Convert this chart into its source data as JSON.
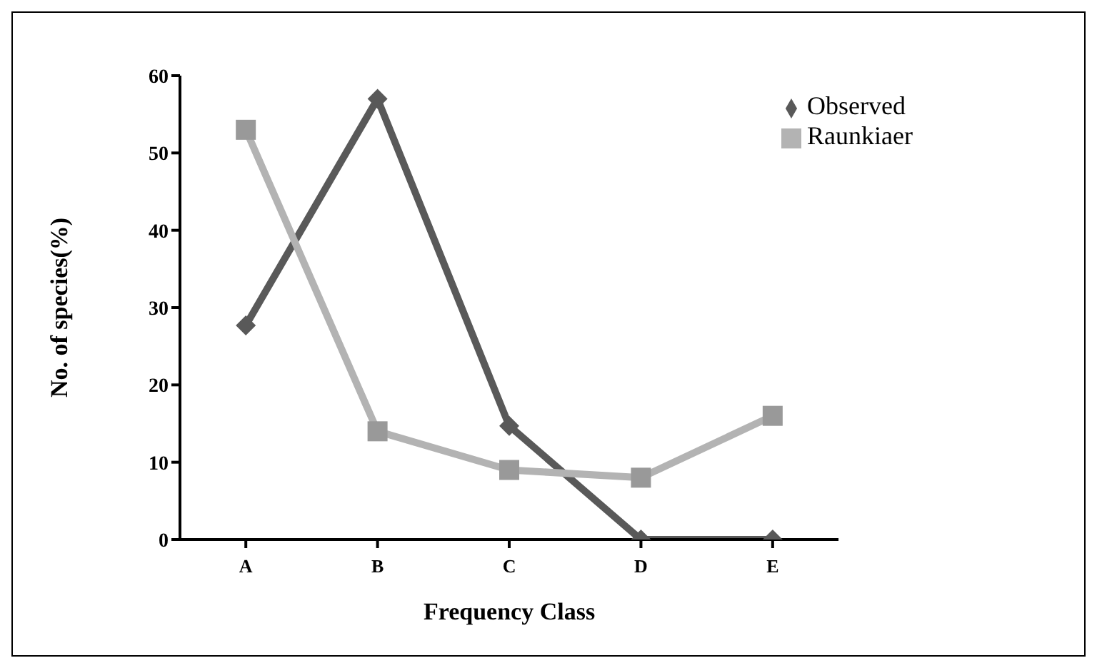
{
  "chart_data": {
    "type": "line",
    "xlabel": "Frequency Class",
    "ylabel": "No. of species(%)",
    "categories": [
      "A",
      "B",
      "C",
      "D",
      "E"
    ],
    "series": [
      {
        "name": "Observed",
        "color": "#595959",
        "values": [
          27.7,
          57,
          14.7,
          0,
          0
        ],
        "marker": "diamond"
      },
      {
        "name": "Raunkiaer",
        "color": "#b3b3b3",
        "values": [
          53,
          14,
          9,
          8,
          16
        ],
        "marker": "square"
      }
    ],
    "ylim": [
      0,
      60
    ],
    "yticks": [
      0,
      10,
      20,
      30,
      40,
      50,
      60
    ],
    "grid": false,
    "legend": "top right",
    "line_style": "solid"
  }
}
